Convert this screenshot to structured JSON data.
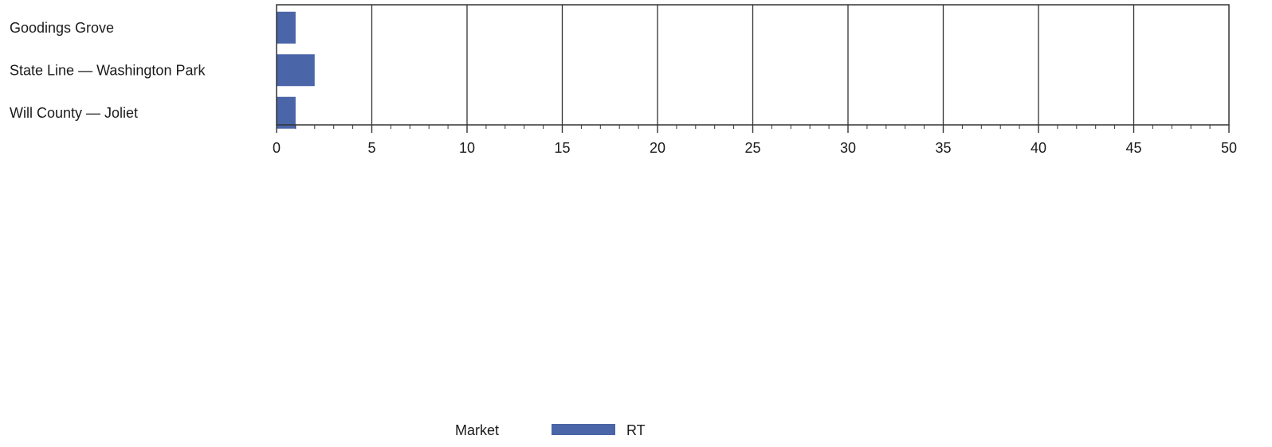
{
  "chart_data": {
    "type": "bar",
    "orientation": "horizontal",
    "categories": [
      "Goodings Grove",
      "State Line — Washington Park",
      "Will County — Joliet"
    ],
    "series": [
      {
        "name": "RT",
        "values": [
          1,
          2,
          1
        ],
        "color": "#4a65a8"
      }
    ],
    "xlim": [
      0,
      50
    ],
    "xticks": [
      0,
      5,
      10,
      15,
      20,
      25,
      30,
      35,
      40,
      45,
      50
    ],
    "minor_tick_step": 1,
    "grid": true,
    "legend": {
      "title": "Market",
      "placement": "bottom-center"
    },
    "title": "",
    "xlabel": "",
    "ylabel": ""
  }
}
